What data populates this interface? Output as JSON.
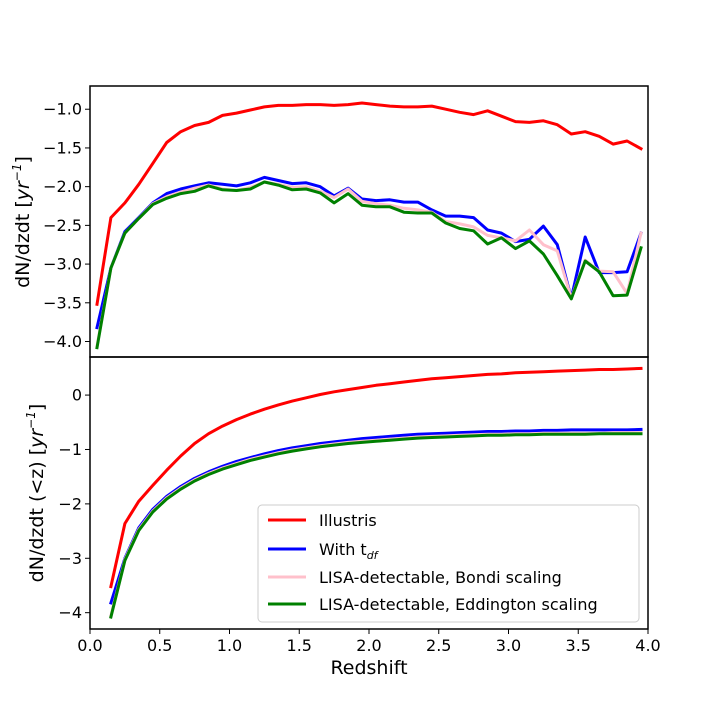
{
  "chart_data": [
    {
      "type": "line",
      "panel": "top",
      "ylabel": "dN/dzdt [yr⁻¹]",
      "xlim": [
        0.0,
        4.0
      ],
      "ylim": [
        -4.2,
        -0.7
      ],
      "yticks": [
        -1.0,
        -1.5,
        -2.0,
        -2.5,
        -3.0,
        -3.5,
        -4.0
      ],
      "ytick_labels": [
        "−1.0",
        "−1.5",
        "−2.0",
        "−2.5",
        "−3.0",
        "−3.5",
        "−4.0"
      ],
      "x": [
        0.05,
        0.15,
        0.25,
        0.35,
        0.45,
        0.55,
        0.65,
        0.75,
        0.85,
        0.95,
        1.05,
        1.15,
        1.25,
        1.35,
        1.45,
        1.55,
        1.65,
        1.75,
        1.85,
        1.95,
        2.05,
        2.15,
        2.25,
        2.35,
        2.45,
        2.55,
        2.65,
        2.75,
        2.85,
        2.95,
        3.05,
        3.15,
        3.25,
        3.35,
        3.45,
        3.55,
        3.65,
        3.75,
        3.85,
        3.95
      ],
      "series": [
        {
          "name": "Illustris",
          "color": "#ff0000",
          "values": [
            -3.52,
            -2.4,
            -2.21,
            -1.97,
            -1.7,
            -1.43,
            -1.29,
            -1.21,
            -1.17,
            -1.08,
            -1.05,
            -1.01,
            -0.97,
            -0.95,
            -0.95,
            -0.94,
            -0.94,
            -0.95,
            -0.94,
            -0.92,
            -0.94,
            -0.96,
            -0.97,
            -0.97,
            -0.96,
            -1.0,
            -1.04,
            -1.07,
            -1.02,
            -1.09,
            -1.16,
            -1.17,
            -1.15,
            -1.2,
            -1.32,
            -1.29,
            -1.35,
            -1.45,
            -1.41,
            -1.51
          ]
        },
        {
          "name": "With t_df",
          "color": "#0000ff",
          "values": [
            -3.82,
            -3.05,
            -2.58,
            -2.4,
            -2.21,
            -2.09,
            -2.03,
            -1.99,
            -1.95,
            -1.97,
            -1.99,
            -1.95,
            -1.88,
            -1.92,
            -1.96,
            -1.95,
            -2.0,
            -2.12,
            -2.02,
            -2.16,
            -2.18,
            -2.17,
            -2.2,
            -2.2,
            -2.3,
            -2.38,
            -2.38,
            -2.4,
            -2.56,
            -2.6,
            -2.71,
            -2.68,
            -2.51,
            -2.75,
            -3.44,
            -2.65,
            -3.11,
            -3.11,
            -3.1,
            -2.6
          ]
        },
        {
          "name": "LISA-detectable, Bondi scaling",
          "color": "#ffc0cb",
          "values": [
            -4.06,
            -3.05,
            -2.6,
            -2.41,
            -2.22,
            -2.13,
            -2.07,
            -2.02,
            -1.98,
            -2.03,
            -2.05,
            -2.01,
            -1.94,
            -1.97,
            -2.01,
            -2.0,
            -2.06,
            -2.14,
            -2.03,
            -2.19,
            -2.22,
            -2.24,
            -2.28,
            -2.3,
            -2.33,
            -2.45,
            -2.48,
            -2.52,
            -2.63,
            -2.66,
            -2.7,
            -2.56,
            -2.75,
            -2.83,
            -3.44,
            -2.95,
            -3.09,
            -3.1,
            -3.38,
            -2.6
          ]
        },
        {
          "name": "LISA-detectable, Eddington scaling",
          "color": "#008000",
          "values": [
            -4.08,
            -3.05,
            -2.6,
            -2.41,
            -2.23,
            -2.15,
            -2.09,
            -2.06,
            -1.99,
            -2.04,
            -2.05,
            -2.03,
            -1.94,
            -1.98,
            -2.04,
            -2.03,
            -2.08,
            -2.21,
            -2.09,
            -2.24,
            -2.26,
            -2.26,
            -2.33,
            -2.34,
            -2.34,
            -2.47,
            -2.54,
            -2.57,
            -2.74,
            -2.66,
            -2.8,
            -2.7,
            -2.87,
            -3.15,
            -3.45,
            -2.96,
            -3.1,
            -3.41,
            -3.4,
            -2.79
          ]
        }
      ]
    },
    {
      "type": "line",
      "panel": "bottom",
      "xlabel": "Redshift",
      "ylabel": "dN/dzdt (<z) [yr⁻¹]",
      "xlim": [
        0.0,
        4.0
      ],
      "ylim": [
        -4.3,
        0.7
      ],
      "xticks": [
        0.0,
        0.5,
        1.0,
        1.5,
        2.0,
        2.5,
        3.0,
        3.5,
        4.0
      ],
      "xtick_labels": [
        "0.0",
        "0.5",
        "1.0",
        "1.5",
        "2.0",
        "2.5",
        "3.0",
        "3.5",
        "4.0"
      ],
      "yticks": [
        0,
        -1,
        -2,
        -3,
        -4
      ],
      "ytick_labels": [
        "0",
        "−1",
        "−2",
        "−3",
        "−4"
      ],
      "x": [
        0.15,
        0.25,
        0.35,
        0.45,
        0.55,
        0.65,
        0.75,
        0.85,
        0.95,
        1.05,
        1.15,
        1.25,
        1.35,
        1.45,
        1.55,
        1.65,
        1.75,
        1.85,
        1.95,
        2.05,
        2.15,
        2.25,
        2.35,
        2.45,
        2.55,
        2.65,
        2.75,
        2.85,
        2.95,
        3.05,
        3.15,
        3.25,
        3.35,
        3.45,
        3.55,
        3.65,
        3.75,
        3.85,
        3.95
      ],
      "series": [
        {
          "name": "Illustris",
          "color": "#ff0000",
          "values": [
            -3.52,
            -2.36,
            -1.95,
            -1.66,
            -1.38,
            -1.12,
            -0.89,
            -0.71,
            -0.57,
            -0.45,
            -0.35,
            -0.26,
            -0.18,
            -0.11,
            -0.05,
            0.01,
            0.06,
            0.1,
            0.14,
            0.18,
            0.21,
            0.24,
            0.27,
            0.3,
            0.32,
            0.34,
            0.36,
            0.38,
            0.39,
            0.41,
            0.42,
            0.43,
            0.44,
            0.45,
            0.46,
            0.47,
            0.47,
            0.48,
            0.49
          ]
        },
        {
          "name": "With t_df",
          "color": "#0000ff",
          "values": [
            -3.82,
            -3.0,
            -2.44,
            -2.1,
            -1.86,
            -1.68,
            -1.53,
            -1.41,
            -1.31,
            -1.22,
            -1.15,
            -1.08,
            -1.02,
            -0.97,
            -0.93,
            -0.89,
            -0.86,
            -0.83,
            -0.8,
            -0.78,
            -0.76,
            -0.74,
            -0.72,
            -0.71,
            -0.7,
            -0.69,
            -0.68,
            -0.67,
            -0.67,
            -0.66,
            -0.66,
            -0.65,
            -0.65,
            -0.64,
            -0.64,
            -0.64,
            -0.64,
            -0.64,
            -0.63
          ]
        },
        {
          "name": "LISA-detectable, Bondi scaling",
          "color": "#ffc0cb",
          "values": [
            -4.06,
            -3.02,
            -2.47,
            -2.13,
            -1.89,
            -1.71,
            -1.56,
            -1.44,
            -1.34,
            -1.26,
            -1.18,
            -1.12,
            -1.06,
            -1.01,
            -0.97,
            -0.93,
            -0.9,
            -0.87,
            -0.85,
            -0.83,
            -0.81,
            -0.79,
            -0.77,
            -0.76,
            -0.75,
            -0.74,
            -0.73,
            -0.72,
            -0.72,
            -0.71,
            -0.71,
            -0.7,
            -0.7,
            -0.7,
            -0.7,
            -0.7,
            -0.69,
            -0.69,
            -0.69
          ]
        },
        {
          "name": "LISA-detectable, Eddington scaling",
          "color": "#008000",
          "values": [
            -4.08,
            -3.04,
            -2.49,
            -2.15,
            -1.91,
            -1.73,
            -1.58,
            -1.46,
            -1.36,
            -1.28,
            -1.2,
            -1.14,
            -1.08,
            -1.03,
            -0.99,
            -0.95,
            -0.92,
            -0.89,
            -0.87,
            -0.85,
            -0.83,
            -0.81,
            -0.79,
            -0.78,
            -0.77,
            -0.76,
            -0.75,
            -0.74,
            -0.74,
            -0.73,
            -0.73,
            -0.72,
            -0.72,
            -0.72,
            -0.72,
            -0.71,
            -0.71,
            -0.71,
            -0.71
          ]
        }
      ]
    }
  ],
  "legend": {
    "placement": "lower right of bottom panel",
    "entries": [
      {
        "label": "Illustris",
        "color": "#ff0000"
      },
      {
        "label": "With t",
        "sub": "df",
        "color": "#0000ff"
      },
      {
        "label": "LISA-detectable, Bondi scaling",
        "color": "#ffc0cb"
      },
      {
        "label": "LISA-detectable, Eddington scaling",
        "color": "#008000"
      }
    ]
  },
  "axis_text": {
    "top_ylabel_main": "dN/dzdt [",
    "bottom_ylabel_main": "dN/dzdt (<z) [",
    "unit_base": "yr",
    "unit_exp": "−1",
    "unit_close": "]",
    "xlabel": "Redshift"
  }
}
